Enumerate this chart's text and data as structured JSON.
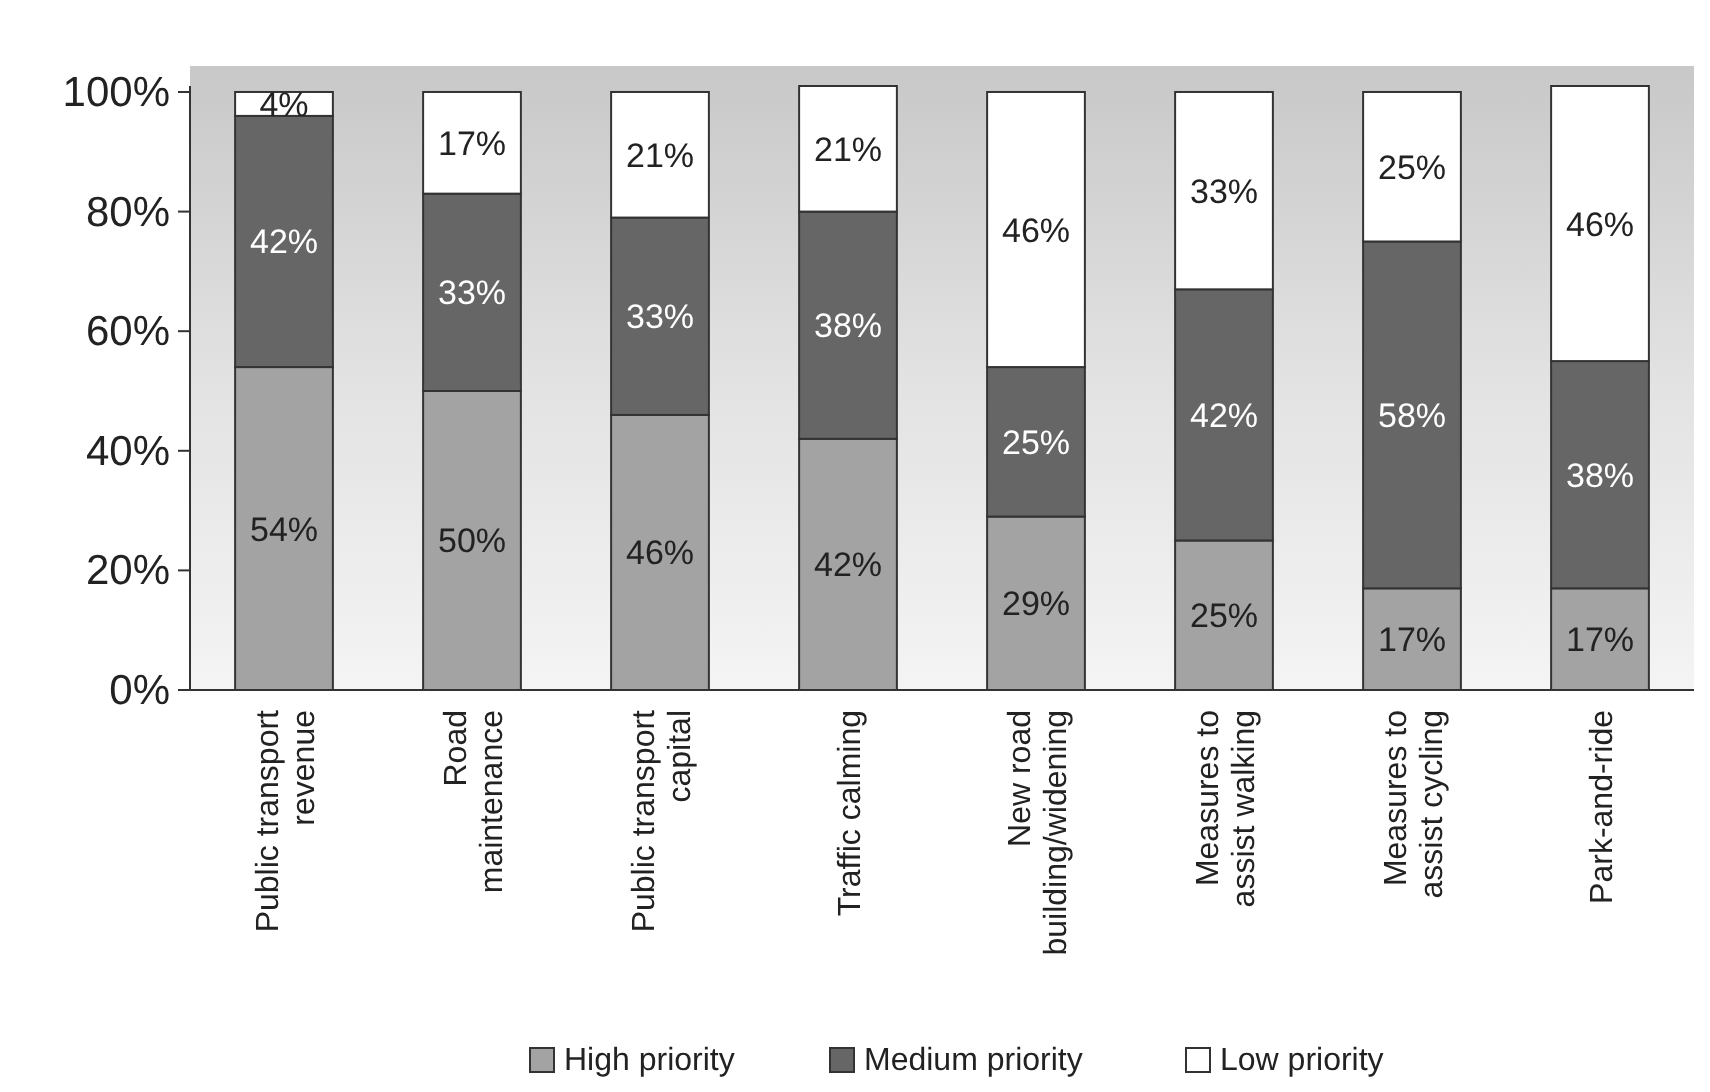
{
  "chart_data": {
    "type": "bar",
    "stacked": true,
    "categories": [
      "Public transport\nrevenue",
      "Road\nmaintenance",
      "Public transport\ncapital",
      "Traffic calming",
      "New road\nbuilding/widening",
      "Measures to\nassist walking",
      "Measures to\nassist cycling",
      "Park-and-ride"
    ],
    "series": [
      {
        "name": "High priority",
        "color": "#a3a3a3",
        "values": [
          54,
          50,
          46,
          42,
          29,
          25,
          17,
          17
        ],
        "value_labels": [
          "54%",
          "50%",
          "46%",
          "42%",
          "29%",
          "25%",
          "17%",
          "17%"
        ]
      },
      {
        "name": "Medium priority",
        "color": "#666666",
        "values": [
          42,
          33,
          33,
          38,
          25,
          42,
          58,
          38
        ],
        "value_labels": [
          "42%",
          "33%",
          "33%",
          "38%",
          "25%",
          "42%",
          "58%",
          "38%"
        ]
      },
      {
        "name": "Low priority",
        "color": "#ffffff",
        "values": [
          4,
          17,
          21,
          21,
          46,
          33,
          25,
          46
        ],
        "value_labels": [
          "4%",
          "17%",
          "21%",
          "21%",
          "46%",
          "33%",
          "25%",
          "46%"
        ]
      }
    ],
    "ylim": [
      0,
      101
    ],
    "yticks": [
      {
        "value": 0,
        "label": "0%"
      },
      {
        "value": 20,
        "label": "20%"
      },
      {
        "value": 40,
        "label": "40%"
      },
      {
        "value": 60,
        "label": "60%"
      },
      {
        "value": 80,
        "label": "80%"
      },
      {
        "value": 100,
        "label": "100%"
      }
    ],
    "legend": "bottom",
    "grid": false
  }
}
